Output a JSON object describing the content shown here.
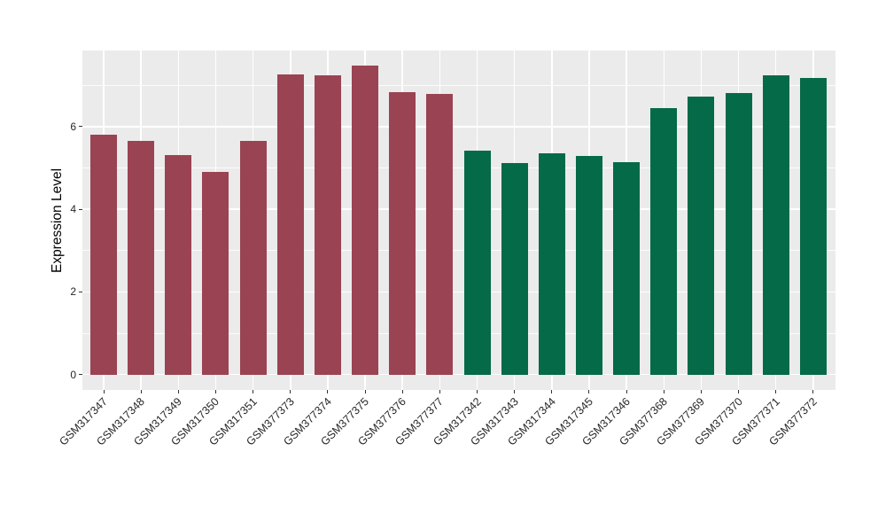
{
  "figure": {
    "background": "#FFFFFF",
    "panel_background": "#EBEBEB",
    "grid_color": "#FFFFFF",
    "tick_label_color": "#262626",
    "axis_title_color": "#000000"
  },
  "chart_data": {
    "type": "bar",
    "title": "",
    "xlabel": "",
    "ylabel": "Expression Level",
    "legend": "none",
    "grid": "horizontal major+minor white, vertical major white",
    "categories": [
      "GSM317347",
      "GSM317348",
      "GSM317349",
      "GSM317350",
      "GSM317351",
      "GSM377373",
      "GSM377374",
      "GSM377375",
      "GSM377376",
      "GSM377377",
      "GSM317342",
      "GSM317343",
      "GSM317344",
      "GSM317345",
      "GSM317346",
      "GSM377368",
      "GSM377369",
      "GSM377370",
      "GSM377371",
      "GSM377372"
    ],
    "values": [
      5.8,
      5.66,
      5.3,
      4.9,
      5.66,
      7.27,
      7.25,
      7.47,
      6.83,
      6.79,
      5.41,
      5.11,
      5.36,
      5.29,
      5.14,
      6.45,
      6.72,
      6.81,
      7.24,
      7.17
    ],
    "groups": [
      {
        "color": "#9A4352",
        "start": 0,
        "count": 10
      },
      {
        "color": "#046A47",
        "start": 10,
        "count": 10
      }
    ],
    "ylim": [
      -0.37,
      7.84
    ],
    "yticks": [
      0,
      2,
      4,
      6
    ],
    "yticks_minor": [
      1,
      3,
      5,
      7
    ]
  }
}
